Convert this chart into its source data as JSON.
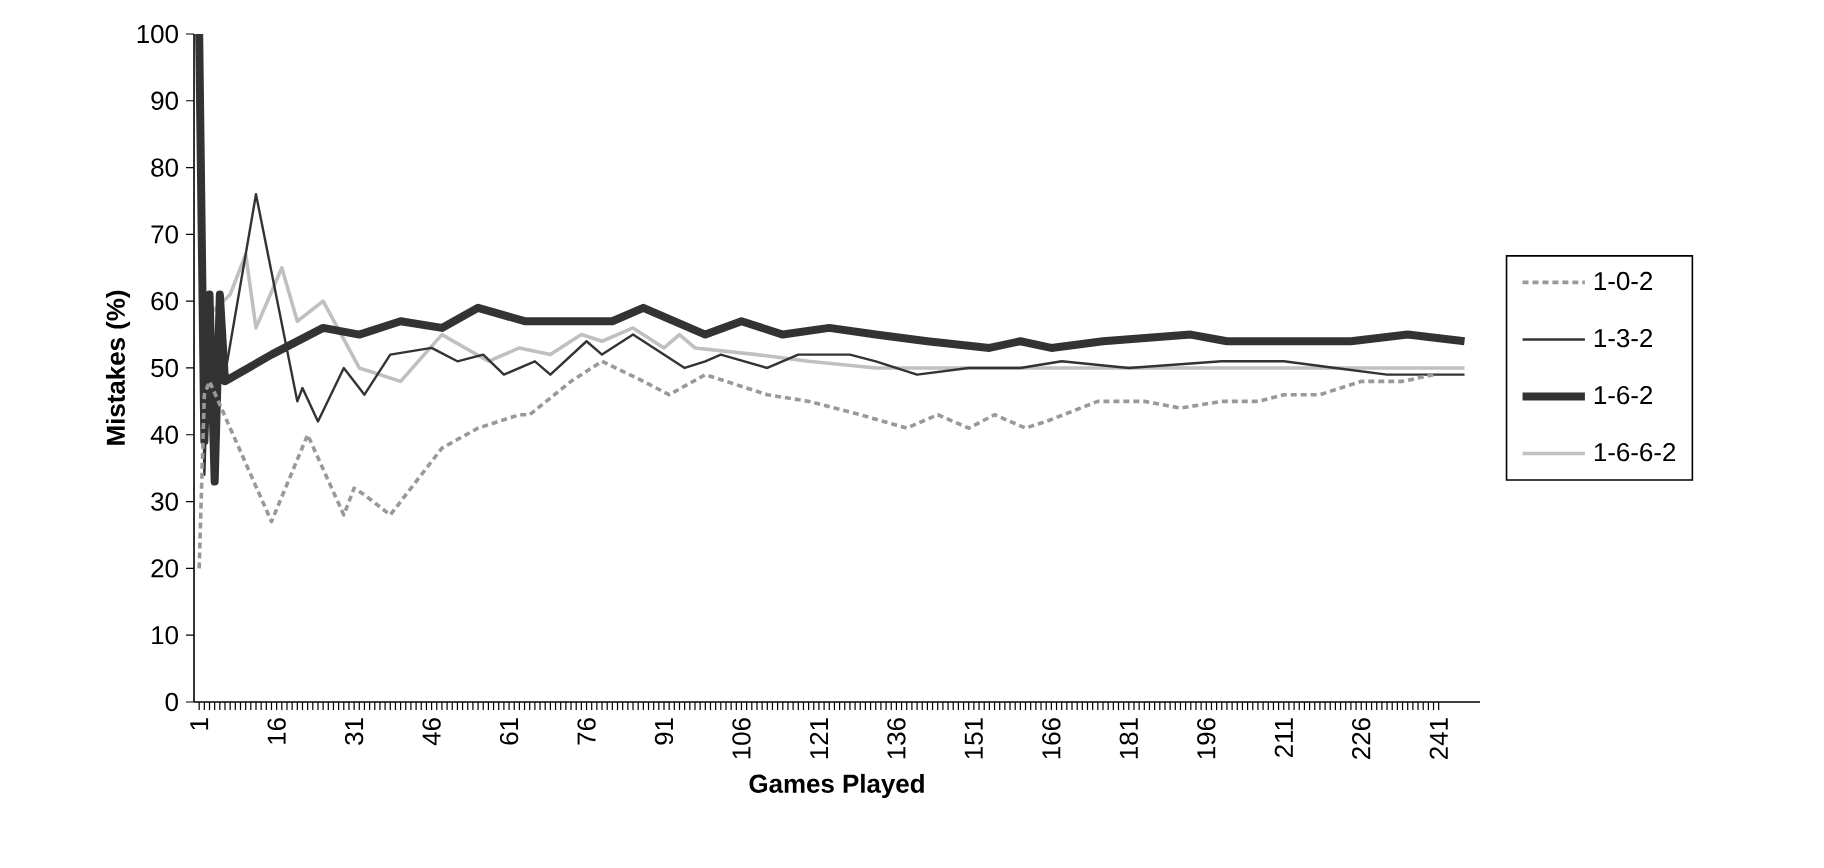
{
  "chart_data": {
    "type": "line",
    "xlabel": "Games Played",
    "ylabel": "Mistakes (%)",
    "xlim": [
      0,
      249
    ],
    "xticks": [
      1,
      16,
      31,
      46,
      61,
      76,
      91,
      106,
      121,
      136,
      151,
      166,
      181,
      196,
      211,
      226,
      241
    ],
    "ylim": [
      0,
      100
    ],
    "yticks": [
      0,
      10,
      20,
      30,
      40,
      50,
      60,
      70,
      80,
      90,
      100
    ],
    "grid": false,
    "legend": "right",
    "marker": "none",
    "series": [
      {
        "name": "1-0-2",
        "color": "#999999",
        "line_style": "dashed",
        "x": [
          1,
          2,
          3,
          15,
          22,
          29,
          31,
          33,
          38,
          48,
          55,
          63,
          65,
          73,
          79,
          87,
          92,
          99,
          111,
          119,
          129,
          138,
          144,
          150,
          155,
          161,
          165,
          175,
          184,
          191,
          199,
          206,
          211,
          218,
          226,
          234,
          240
        ],
        "values": [
          20,
          46,
          48,
          27,
          40,
          28,
          32,
          31,
          28,
          38,
          41,
          43,
          43,
          48,
          51,
          48,
          46,
          49,
          46,
          45,
          43,
          41,
          43,
          41,
          43,
          41,
          42,
          45,
          45,
          44,
          45,
          45,
          46,
          46,
          48,
          48,
          49
        ]
      },
      {
        "name": "1-3-2",
        "color": "#333333",
        "line_style": "solid",
        "x": [
          1,
          2,
          3,
          4,
          5,
          6,
          12,
          20,
          21,
          24,
          29,
          33,
          38,
          46,
          51,
          56,
          60,
          66,
          69,
          76,
          79,
          85,
          95,
          99,
          102,
          111,
          117,
          127,
          132,
          140,
          150,
          160,
          168,
          181,
          199,
          211,
          221,
          231,
          239,
          246
        ],
        "values": [
          100,
          34,
          60,
          40,
          61,
          49,
          76,
          45,
          47,
          42,
          50,
          46,
          52,
          53,
          51,
          52,
          49,
          51,
          49,
          54,
          52,
          55,
          50,
          51,
          52,
          50,
          52,
          52,
          51,
          49,
          50,
          50,
          51,
          50,
          51,
          51,
          50,
          49,
          49,
          49
        ]
      },
      {
        "name": "1-6-2",
        "color": "#333333",
        "line_style": "solid",
        "x": [
          1,
          2,
          3,
          4,
          5,
          6,
          15,
          25,
          32,
          40,
          48,
          55,
          64,
          70,
          81,
          87,
          99,
          106,
          114,
          123,
          132,
          142,
          154,
          160,
          166,
          176,
          193,
          200,
          215,
          224,
          235,
          246
        ],
        "values": [
          100,
          39,
          61,
          33,
          61,
          48,
          52,
          56,
          55,
          57,
          56,
          59,
          57,
          57,
          57,
          59,
          55,
          57,
          55,
          56,
          55,
          54,
          53,
          54,
          53,
          54,
          55,
          54,
          54,
          54,
          55,
          54
        ]
      },
      {
        "name": "1-6-6-2",
        "color": "#c0c0c0",
        "line_style": "solid",
        "x": [
          1,
          2,
          3,
          7,
          10,
          12,
          17,
          20,
          25,
          32,
          40,
          48,
          57,
          63,
          69,
          75,
          79,
          85,
          91,
          94,
          97,
          109,
          119,
          132,
          160,
          200,
          221,
          246
        ],
        "values": [
          100,
          40,
          58,
          61,
          67,
          56,
          65,
          57,
          60,
          50,
          48,
          55,
          51,
          53,
          52,
          55,
          54,
          56,
          53,
          55,
          53,
          52,
          51,
          50,
          50,
          50,
          50,
          50
        ]
      }
    ]
  }
}
